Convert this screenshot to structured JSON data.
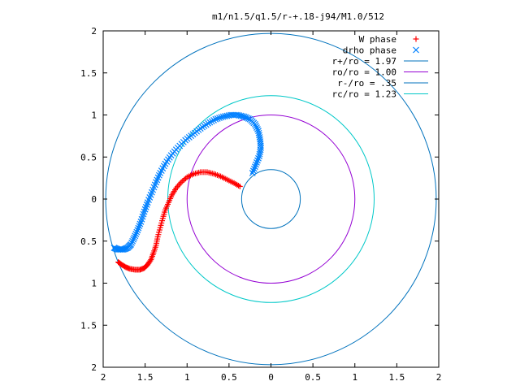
{
  "chart_data": {
    "type": "scatter",
    "title": "m1/n1.5/q1.5/r-+.18-j94/M1.0/512",
    "xlabel": "",
    "ylabel": "",
    "xlim": [
      -2,
      2
    ],
    "ylim": [
      -2,
      2
    ],
    "x_ticks": [
      {
        "value": -2,
        "label": "2"
      },
      {
        "value": -1.5,
        "label": "1.5"
      },
      {
        "value": -1,
        "label": "1"
      },
      {
        "value": -0.5,
        "label": "0.5"
      },
      {
        "value": 0,
        "label": "0"
      },
      {
        "value": 0.5,
        "label": "0.5"
      },
      {
        "value": 1,
        "label": "1"
      },
      {
        "value": 1.5,
        "label": "1.5"
      },
      {
        "value": 2,
        "label": "2"
      }
    ],
    "y_ticks": [
      {
        "value": 2,
        "label": "2"
      },
      {
        "value": 1.5,
        "label": "1.5"
      },
      {
        "value": 1,
        "label": "1"
      },
      {
        "value": 0.5,
        "label": "0.5"
      },
      {
        "value": 0,
        "label": "0"
      },
      {
        "value": -0.5,
        "label": "0.5"
      },
      {
        "value": -1,
        "label": "1"
      },
      {
        "value": -1.5,
        "label": "1.5"
      },
      {
        "value": -2,
        "label": "2"
      }
    ],
    "grid": false,
    "legend_position": "top-right",
    "series": [
      {
        "name": "W phase",
        "marker": "+",
        "color": "#ff0000",
        "x": [
          -1.82,
          -1.78,
          -1.73,
          -1.68,
          -1.62,
          -1.56,
          -1.51,
          -1.47,
          -1.43,
          -1.4,
          -1.37,
          -1.35,
          -1.32,
          -1.29,
          -1.26,
          -1.22,
          -1.18,
          -1.13,
          -1.07,
          -1.0,
          -0.92,
          -0.84,
          -0.76,
          -0.68,
          -0.6,
          -0.52,
          -0.44,
          -0.37
        ],
        "y": [
          -0.75,
          -0.78,
          -0.81,
          -0.83,
          -0.84,
          -0.84,
          -0.82,
          -0.78,
          -0.72,
          -0.64,
          -0.55,
          -0.45,
          -0.34,
          -0.23,
          -0.13,
          -0.04,
          0.05,
          0.13,
          0.2,
          0.26,
          0.3,
          0.32,
          0.32,
          0.3,
          0.27,
          0.23,
          0.19,
          0.15
        ]
      },
      {
        "name": "drho phase",
        "marker": "x",
        "color": "#0080ff",
        "x": [
          -1.87,
          -1.82,
          -1.76,
          -1.71,
          -1.67,
          -1.63,
          -1.59,
          -1.55,
          -1.51,
          -1.47,
          -1.42,
          -1.37,
          -1.32,
          -1.26,
          -1.19,
          -1.11,
          -1.02,
          -0.93,
          -0.84,
          -0.75,
          -0.66,
          -0.57,
          -0.48,
          -0.4,
          -0.32,
          -0.25,
          -0.19,
          -0.15,
          -0.13,
          -0.12,
          -0.14,
          -0.18,
          -0.22
        ],
        "y": [
          -0.58,
          -0.6,
          -0.6,
          -0.58,
          -0.54,
          -0.46,
          -0.37,
          -0.27,
          -0.15,
          -0.04,
          0.08,
          0.2,
          0.31,
          0.42,
          0.52,
          0.61,
          0.7,
          0.77,
          0.84,
          0.9,
          0.95,
          0.98,
          1.0,
          1.0,
          0.98,
          0.95,
          0.89,
          0.81,
          0.71,
          0.61,
          0.51,
          0.41,
          0.31
        ]
      }
    ],
    "circles": [
      {
        "name": "r+/ro = 1.97",
        "r": 1.97,
        "color": "#0072bd"
      },
      {
        "name": "ro/ro = 1.00",
        "r": 1.0,
        "color": "#9400d3"
      },
      {
        "name": "r-/ro = .35",
        "r": 0.35,
        "color": "#0072bd"
      },
      {
        "name": "rc/ro = 1.23",
        "r": 1.23,
        "color": "#00c8c8"
      }
    ]
  }
}
